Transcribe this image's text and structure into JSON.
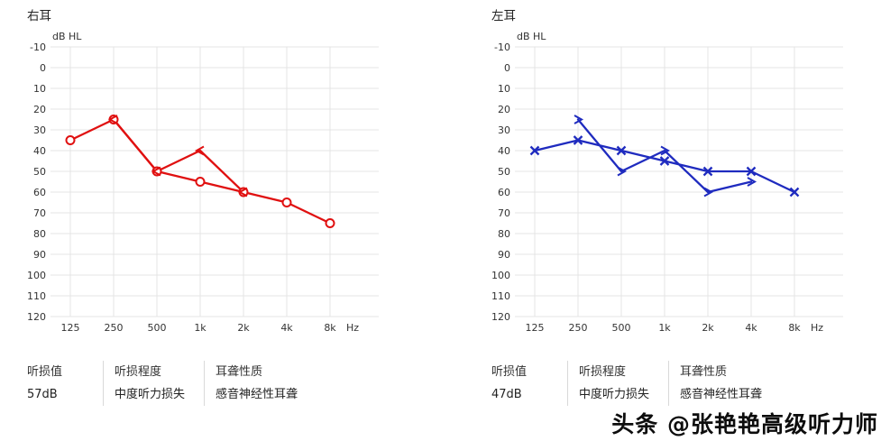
{
  "watermark": "头条 @张艳艳高级听力师",
  "chart_data": [
    {
      "type": "line",
      "title": "右耳",
      "ylabel": "dB HL",
      "x_unit": "Hz",
      "color": "#e01010",
      "grid_color": "#e4e4e4",
      "categories": [
        "125",
        "250",
        "500",
        "1k",
        "2k",
        "4k",
        "8k"
      ],
      "ylim": [
        -10,
        120
      ],
      "y_step": 10,
      "y_inverted": true,
      "series": [
        {
          "marker": "circle",
          "points": [
            {
              "f": "125",
              "db": 35
            },
            {
              "f": "250",
              "db": 25
            },
            {
              "f": "500",
              "db": 50
            },
            {
              "f": "1k",
              "db": 55
            },
            {
              "f": "2k",
              "db": 60
            },
            {
              "f": "4k",
              "db": 65
            },
            {
              "f": "8k",
              "db": 75
            }
          ]
        },
        {
          "marker": "chevron-left",
          "points": [
            {
              "f": "250",
              "db": 25
            },
            {
              "f": "500",
              "db": 50
            },
            {
              "f": "1k",
              "db": 40
            },
            {
              "f": "2k",
              "db": 60
            }
          ]
        }
      ],
      "summary": {
        "headers": [
          "听损值",
          "听损程度",
          "耳聋性质"
        ],
        "values": [
          "57dB",
          "中度听力损失",
          "感音神经性耳聋"
        ]
      }
    },
    {
      "type": "line",
      "title": "左耳",
      "ylabel": "dB HL",
      "x_unit": "Hz",
      "color": "#1f2bbf",
      "grid_color": "#e4e4e4",
      "categories": [
        "125",
        "250",
        "500",
        "1k",
        "2k",
        "4k",
        "8k"
      ],
      "ylim": [
        -10,
        120
      ],
      "y_step": 10,
      "y_inverted": true,
      "series": [
        {
          "marker": "x",
          "points": [
            {
              "f": "125",
              "db": 40
            },
            {
              "f": "250",
              "db": 35
            },
            {
              "f": "500",
              "db": 40
            },
            {
              "f": "1k",
              "db": 45
            },
            {
              "f": "2k",
              "db": 50
            },
            {
              "f": "4k",
              "db": 50
            },
            {
              "f": "8k",
              "db": 60
            }
          ]
        },
        {
          "marker": "chevron-right",
          "points": [
            {
              "f": "250",
              "db": 25
            },
            {
              "f": "500",
              "db": 50
            },
            {
              "f": "1k",
              "db": 40
            },
            {
              "f": "2k",
              "db": 60
            },
            {
              "f": "4k",
              "db": 55
            }
          ]
        }
      ],
      "summary": {
        "headers": [
          "听损值",
          "听损程度",
          "耳聋性质"
        ],
        "values": [
          "47dB",
          "中度听力损失",
          "感音神经性耳聋"
        ]
      }
    }
  ]
}
